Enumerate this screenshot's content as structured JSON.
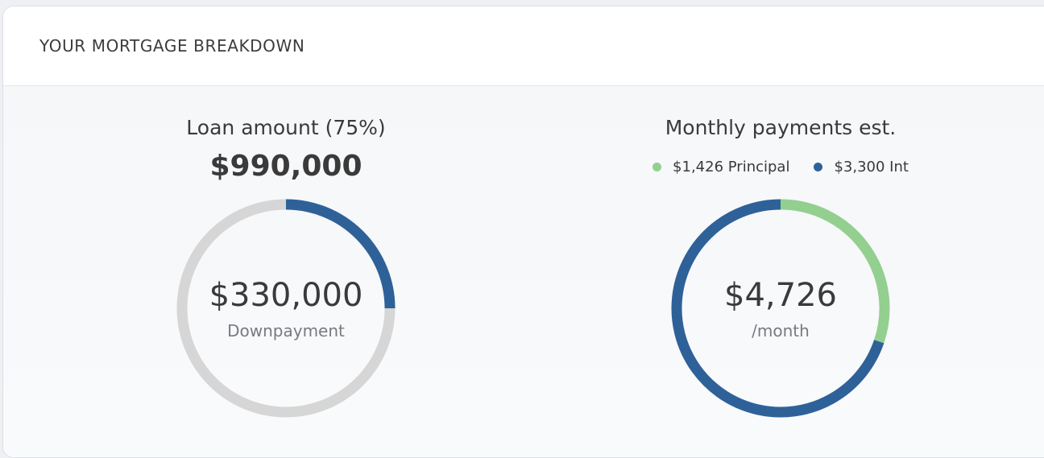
{
  "header": {
    "title": "YOUR MORTGAGE BREAKDOWN"
  },
  "loan": {
    "heading": "Loan amount (75%)",
    "amount": "$990,000",
    "center_value": "$330,000",
    "center_label": "Downpayment",
    "downpayment_fraction": 0.25
  },
  "monthly": {
    "heading": "Monthly payments est.",
    "legend": [
      {
        "label": "$1,426 Principal",
        "color": "#93cf8f",
        "value": 1426
      },
      {
        "label": "$3,300 Int",
        "color": "#2f6199",
        "value": 3300
      }
    ],
    "center_value": "$4,726",
    "center_label": "/month"
  },
  "colors": {
    "accent_blue": "#2f6199",
    "accent_green": "#93cf8f",
    "track_gray": "#d6d6d6"
  }
}
